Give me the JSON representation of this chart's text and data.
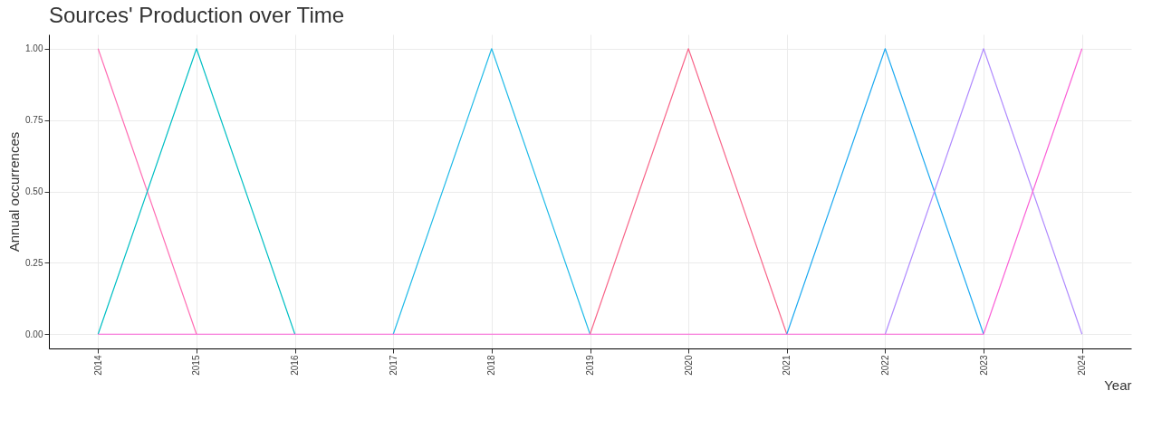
{
  "chart_data": {
    "type": "line",
    "title": "Sources' Production over Time",
    "xlabel": "Year",
    "ylabel": "Annual occurrences",
    "x": [
      2014,
      2015,
      2016,
      2017,
      2018,
      2019,
      2020,
      2021,
      2022,
      2023,
      2024
    ],
    "series": [
      {
        "color": "#ff6eb4",
        "values": [
          1,
          0,
          null,
          null,
          null,
          null,
          null,
          null,
          null,
          null,
          null
        ]
      },
      {
        "color": "#00bfc4",
        "values": [
          0,
          1,
          0,
          null,
          null,
          null,
          null,
          null,
          null,
          null,
          null
        ]
      },
      {
        "color": "#22bbe8",
        "values": [
          null,
          null,
          null,
          0,
          1,
          0,
          null,
          null,
          null,
          null,
          null
        ]
      },
      {
        "color": "#f8668a",
        "values": [
          null,
          null,
          null,
          null,
          null,
          0,
          1,
          0,
          null,
          null,
          null
        ]
      },
      {
        "color": "#1eaaf1",
        "values": [
          null,
          null,
          null,
          null,
          null,
          null,
          null,
          0,
          1,
          0,
          null
        ]
      },
      {
        "color": "#b18cfe",
        "values": [
          null,
          null,
          null,
          null,
          null,
          null,
          null,
          null,
          0,
          1,
          0
        ]
      },
      {
        "color": "#fb61d7",
        "values": [
          0,
          0,
          0,
          0,
          0,
          0,
          0,
          0,
          0,
          0,
          1
        ]
      }
    ],
    "xlim": [
      2013.5,
      2024.5
    ],
    "xticks": [
      2014,
      2015,
      2016,
      2017,
      2018,
      2019,
      2020,
      2021,
      2022,
      2023,
      2024
    ],
    "ylim": [
      -0.05,
      1.05
    ],
    "yticks": [
      {
        "value": 0,
        "label": "0.00"
      },
      {
        "value": 0.25,
        "label": "0.25"
      },
      {
        "value": 0.5,
        "label": "0.50"
      },
      {
        "value": 0.75,
        "label": "0.75"
      },
      {
        "value": 1,
        "label": "1.00"
      }
    ],
    "grid": true
  }
}
